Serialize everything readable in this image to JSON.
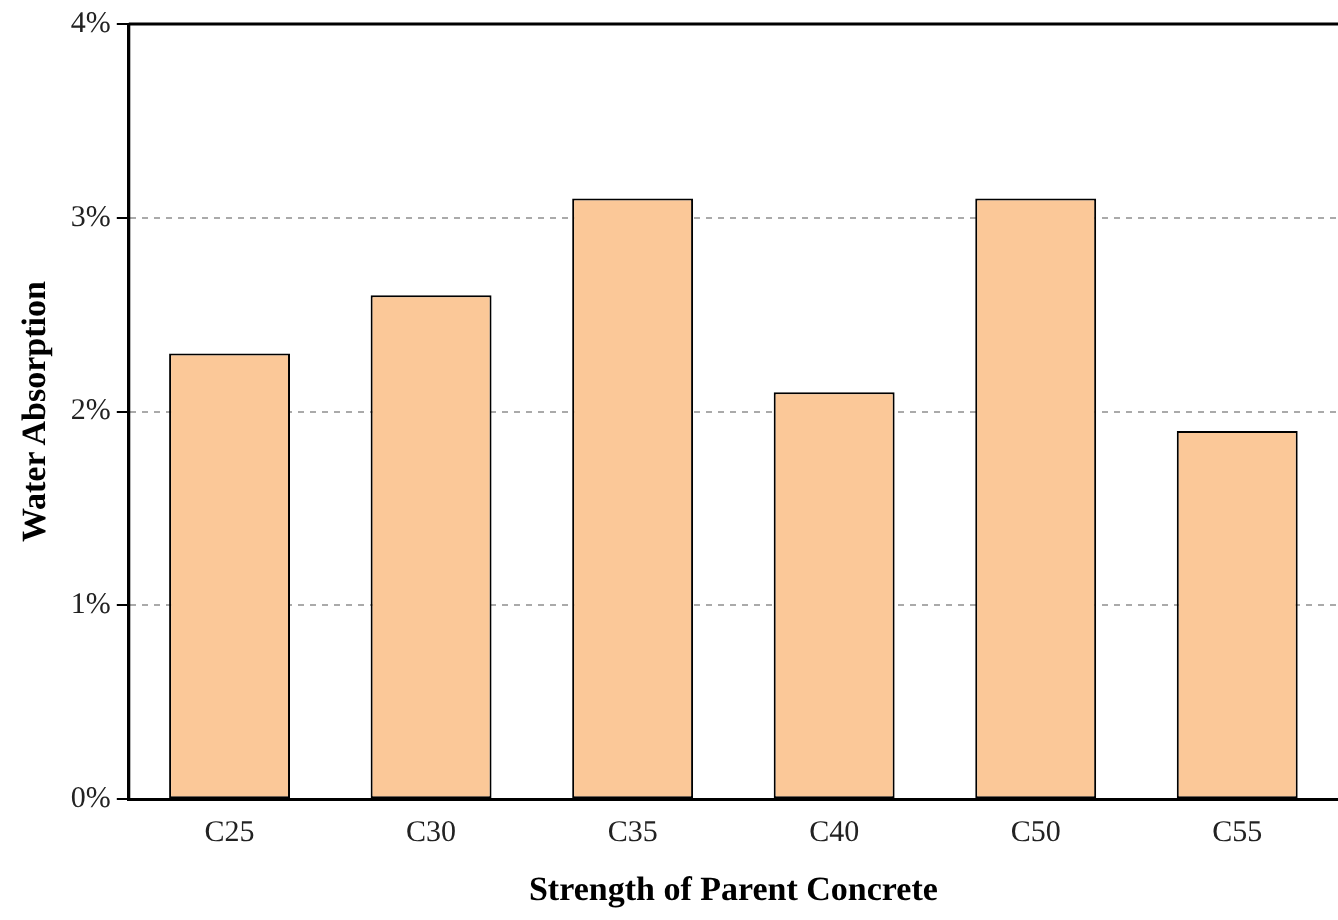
{
  "chart_data": {
    "type": "bar",
    "xlabel": "Strength of Parent Concrete",
    "ylabel": "Water Absorption",
    "categories": [
      "C25",
      "C30",
      "C35",
      "C40",
      "C50",
      "C55"
    ],
    "values": [
      2.3,
      2.6,
      3.1,
      2.1,
      3.1,
      1.9
    ],
    "color": "#fbc898",
    "ylim": [
      0,
      4
    ],
    "yticks": [
      {
        "value": 0,
        "label": "0%"
      },
      {
        "value": 1,
        "label": "1%"
      },
      {
        "value": 2,
        "label": "2%"
      },
      {
        "value": 3,
        "label": "3%"
      },
      {
        "value": 4,
        "label": "4%"
      }
    ],
    "grid": "y",
    "legend": false
  }
}
